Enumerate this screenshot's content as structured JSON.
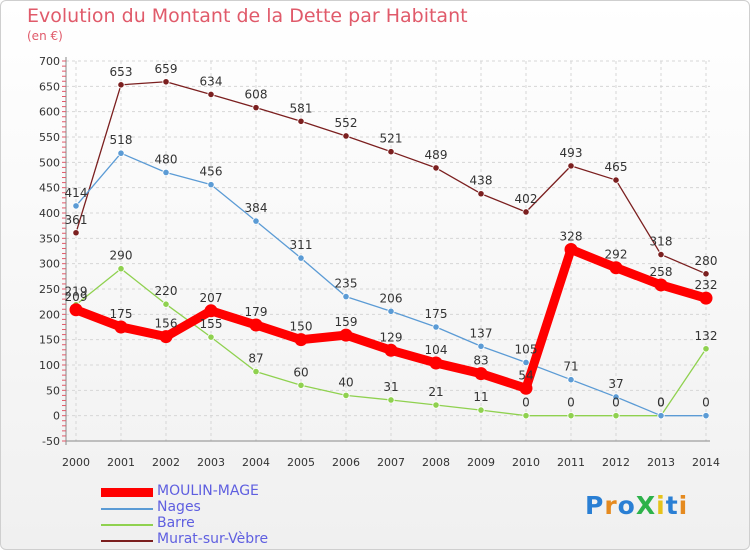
{
  "title": "Evolution du Montant de la Dette par Habitant",
  "subtitle": "(en €)",
  "logo": {
    "text": "ProXiti",
    "letter_colors": [
      "#2a7fd4",
      "#e58a1f",
      "#2a7fd4",
      "#2db24a",
      "#e6c21a",
      "#2a7fd4",
      "#e58a1f"
    ]
  },
  "chart_data": {
    "type": "line",
    "title": "Evolution du Montant de la Dette par Habitant",
    "subtitle": "(en €)",
    "x": [
      "2000",
      "2001",
      "2002",
      "2003",
      "2004",
      "2005",
      "2006",
      "2007",
      "2008",
      "2009",
      "2010",
      "2011",
      "2012",
      "2013",
      "2014"
    ],
    "ylim": [
      -50,
      700
    ],
    "yticks": [
      -50,
      0,
      50,
      100,
      150,
      200,
      250,
      300,
      350,
      400,
      450,
      500,
      550,
      600,
      650,
      700
    ],
    "grid": true,
    "legend_position": "bottom-left",
    "series": [
      {
        "name": "MOULIN-MAGE",
        "color": "#ff0000",
        "values": [
          209,
          175,
          156,
          207,
          179,
          150,
          159,
          129,
          104,
          83,
          54,
          328,
          292,
          258,
          232
        ],
        "labels": [
          "209",
          "175",
          "156",
          "207",
          "179",
          "150",
          "159",
          "129",
          "104",
          "83",
          "54",
          "328",
          "292",
          "258",
          "232"
        ]
      },
      {
        "name": "Nages",
        "color": "#5b9bd5",
        "values": [
          414,
          518,
          480,
          456,
          384,
          311,
          235,
          206,
          175,
          137,
          105,
          71,
          37,
          0,
          0
        ],
        "labels": [
          "414",
          "518",
          "480",
          "456",
          "384",
          "311",
          "235",
          "206",
          "175",
          "137",
          "105",
          "71",
          "37",
          "0",
          "0"
        ]
      },
      {
        "name": "Barre",
        "color": "#8fd14f",
        "values": [
          219,
          290,
          220,
          155,
          87,
          60,
          40,
          31,
          21,
          11,
          0,
          0,
          0,
          0,
          132
        ],
        "labels": [
          "219",
          "290",
          "220",
          "155",
          "87",
          "60",
          "40",
          "31",
          "21",
          "11",
          "0",
          "0",
          "0",
          "0",
          "132"
        ]
      },
      {
        "name": "Murat-sur-Vèbre",
        "color": "#7b1f1f",
        "values": [
          361,
          653,
          659,
          634,
          608,
          581,
          552,
          521,
          489,
          438,
          402,
          493,
          465,
          318,
          280
        ],
        "labels": [
          "361",
          "653",
          "659",
          "634",
          "608",
          "581",
          "552",
          "521",
          "489",
          "438",
          "402",
          "493",
          "465",
          "318",
          "280"
        ]
      }
    ]
  }
}
